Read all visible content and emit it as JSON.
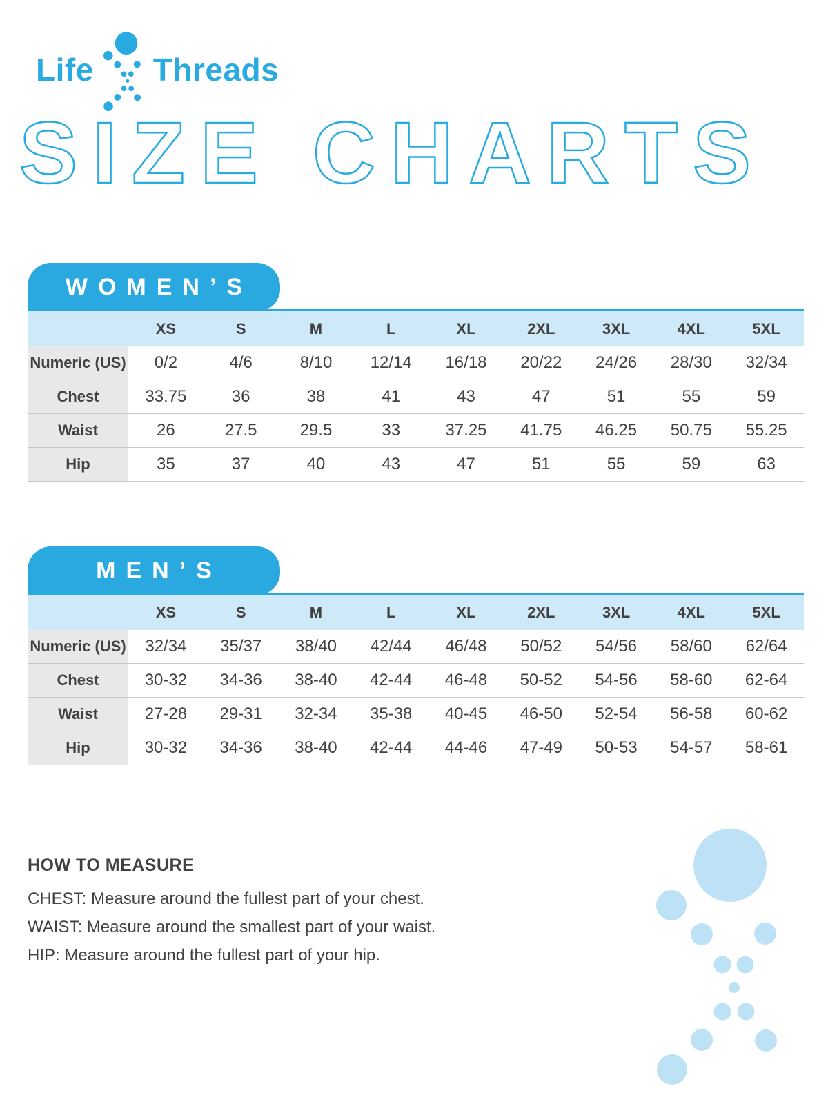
{
  "brand": {
    "name_left": "Life",
    "name_right": "Threads"
  },
  "page_title": "SIZE CHARTS",
  "icons": {
    "logo_mark": "dot-helix-icon",
    "decoration": "dot-helix-decoration-icon"
  },
  "tables": [
    {
      "title": "WOMEN’S",
      "sizes": [
        "XS",
        "S",
        "M",
        "L",
        "XL",
        "2XL",
        "3XL",
        "4XL",
        "5XL"
      ],
      "rows": [
        {
          "label": "Numeric (US)",
          "values": [
            "0/2",
            "4/6",
            "8/10",
            "12/14",
            "16/18",
            "20/22",
            "24/26",
            "28/30",
            "32/34"
          ]
        },
        {
          "label": "Chest",
          "values": [
            "33.75",
            "36",
            "38",
            "41",
            "43",
            "47",
            "51",
            "55",
            "59"
          ]
        },
        {
          "label": "Waist",
          "values": [
            "26",
            "27.5",
            "29.5",
            "33",
            "37.25",
            "41.75",
            "46.25",
            "50.75",
            "55.25"
          ]
        },
        {
          "label": "Hip",
          "values": [
            "35",
            "37",
            "40",
            "43",
            "47",
            "51",
            "55",
            "59",
            "63"
          ]
        }
      ]
    },
    {
      "title": "MEN’S",
      "sizes": [
        "XS",
        "S",
        "M",
        "L",
        "XL",
        "2XL",
        "3XL",
        "4XL",
        "5XL"
      ],
      "rows": [
        {
          "label": "Numeric (US)",
          "values": [
            "32/34",
            "35/37",
            "38/40",
            "42/44",
            "46/48",
            "50/52",
            "54/56",
            "58/60",
            "62/64"
          ]
        },
        {
          "label": "Chest",
          "values": [
            "30-32",
            "34-36",
            "38-40",
            "42-44",
            "46-48",
            "50-52",
            "54-56",
            "58-60",
            "62-64"
          ]
        },
        {
          "label": "Waist",
          "values": [
            "27-28",
            "29-31",
            "32-34",
            "35-38",
            "40-45",
            "46-50",
            "52-54",
            "56-58",
            "60-62"
          ]
        },
        {
          "label": "Hip",
          "values": [
            "30-32",
            "34-36",
            "38-40",
            "42-44",
            "44-46",
            "47-49",
            "50-53",
            "54-57",
            "58-61"
          ]
        }
      ]
    }
  ],
  "how_to_measure": {
    "heading": "HOW TO MEASURE",
    "lines": [
      "CHEST: Measure around the fullest part of your chest.",
      "WAIST: Measure around the smallest part of your waist.",
      "HIP: Measure around the fullest part of your hip."
    ]
  },
  "colors": {
    "brand_blue": "#29ABE2",
    "tab_blue": "#29A9E0",
    "header_light_blue": "#CEE9F7",
    "label_gray": "#E8E8E9",
    "text_dark": "#414042",
    "divider_gray": "#C6C7C8",
    "dots_light_blue": "#BEE2F5"
  }
}
